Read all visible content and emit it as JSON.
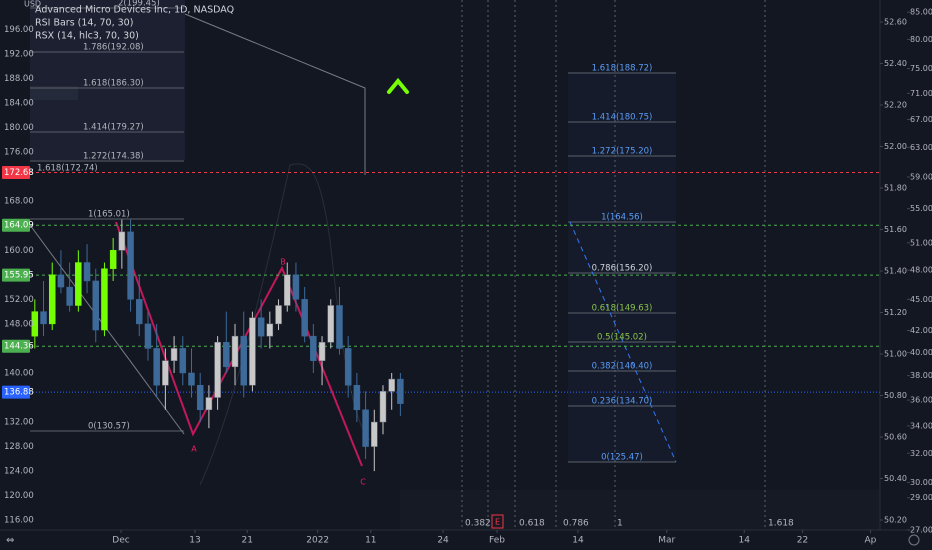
{
  "chart_data": {
    "type": "candlestick",
    "title": "Advanced Micro Devices Inc, 1D, NASDAQ",
    "indicators": [
      "RSI Bars (14, 70, 30)",
      "RSX (14, hlc3, 70, 30)"
    ],
    "currency": "USD",
    "x": [
      0,
      1,
      2,
      3,
      4,
      5,
      6,
      7,
      8,
      9,
      10,
      11,
      12,
      13,
      14,
      15,
      16,
      17,
      18,
      19,
      20,
      21,
      22,
      23,
      24,
      25,
      26,
      27,
      28,
      29,
      30,
      31,
      32,
      33,
      34,
      35,
      36,
      37,
      38,
      39,
      40,
      41,
      42
    ],
    "open": [
      146,
      150,
      148,
      156,
      154,
      151,
      158,
      155,
      147,
      157,
      160,
      163,
      152,
      148,
      144,
      138,
      142,
      144,
      140,
      138,
      134,
      136,
      145,
      141,
      146,
      138,
      149,
      146,
      148,
      151,
      156,
      152,
      146,
      142,
      145,
      151,
      144,
      138,
      134,
      128,
      132,
      137,
      139
    ],
    "high": [
      152,
      155,
      158,
      160,
      158,
      160,
      161,
      157,
      158,
      162,
      165,
      165,
      156,
      150,
      148,
      144,
      146,
      146,
      144,
      140,
      138,
      146,
      150,
      148,
      150,
      150,
      152,
      150,
      152,
      158,
      158,
      154,
      148,
      146,
      152,
      154,
      146,
      140,
      137,
      134,
      138,
      140,
      140
    ],
    "low": [
      144,
      146,
      147,
      153,
      150,
      150,
      153,
      145,
      146,
      155,
      157,
      150,
      146,
      142,
      136,
      134,
      140,
      138,
      136,
      132,
      131,
      134,
      140,
      138,
      136,
      137,
      144,
      144,
      147,
      150,
      150,
      145,
      140,
      138,
      144,
      143,
      136,
      132,
      126,
      124,
      130,
      134,
      133
    ],
    "close": [
      150,
      148,
      156,
      154,
      151,
      158,
      155,
      147,
      157,
      160,
      163,
      152,
      148,
      144,
      138,
      142,
      144,
      140,
      138,
      134,
      136,
      145,
      141,
      146,
      138,
      149,
      146,
      148,
      151,
      156,
      152,
      146,
      142,
      145,
      151,
      144,
      138,
      134,
      128,
      132,
      137,
      139,
      135
    ],
    "colors": [
      "#76ff03",
      "#3d6a99",
      "#76ff03",
      "#3d6a99",
      "#3d6a99",
      "#76ff03",
      "#3d6a99",
      "#3d6a99",
      "#76ff03",
      "#76ff03",
      "#c8c8c8",
      "#3d6a99",
      "#3d6a99",
      "#3d6a99",
      "#3d6a99",
      "#c8c8c8",
      "#c8c8c8",
      "#3d6a99",
      "#3d6a99",
      "#3d6a99",
      "#c8c8c8",
      "#c8c8c8",
      "#3d6a99",
      "#c8c8c8",
      "#3d6a99",
      "#c8c8c8",
      "#3d6a99",
      "#c8c8c8",
      "#c8c8c8",
      "#c8c8c8",
      "#3d6a99",
      "#3d6a99",
      "#3d6a99",
      "#c8c8c8",
      "#c8c8c8",
      "#3d6a99",
      "#3d6a99",
      "#3d6a99",
      "#3d6a99",
      "#c8c8c8",
      "#c8c8c8",
      "#c8c8c8",
      "#3d6a99"
    ],
    "xlim": [
      -4,
      97.1
    ],
    "xticks": [
      {
        "value": 9.9,
        "label": "Dec"
      },
      {
        "value": 18.4,
        "label": "13"
      },
      {
        "value": 24.4,
        "label": "21"
      },
      {
        "value": 32.5,
        "label": "2022"
      },
      {
        "value": 38.6,
        "label": "11"
      },
      {
        "value": 46.9,
        "label": "24"
      },
      {
        "value": 53.1,
        "label": "Feb"
      },
      {
        "value": 62.4,
        "label": "14"
      },
      {
        "value": 72.6,
        "label": "Mar"
      },
      {
        "value": 81.5,
        "label": "14"
      },
      {
        "value": 88.2,
        "label": "22"
      },
      {
        "value": 96.0,
        "label": "Ap"
      }
    ],
    "ylim": [
      114.4,
      200.8
    ],
    "yticks": [
      {
        "value": 116,
        "label": "116.00"
      },
      {
        "value": 120,
        "label": "120.00"
      },
      {
        "value": 124,
        "label": "124.00"
      },
      {
        "value": 128,
        "label": "128.00"
      },
      {
        "value": 132,
        "label": "132.00"
      },
      {
        "value": 140,
        "label": "140.00"
      },
      {
        "value": 148,
        "label": "148.00"
      },
      {
        "value": 152,
        "label": "152.00"
      },
      {
        "value": 160,
        "label": "160.00"
      },
      {
        "value": 168,
        "label": "168.00"
      },
      {
        "value": 176,
        "label": "176.00"
      },
      {
        "value": 180,
        "label": "180.00"
      },
      {
        "value": 184,
        "label": "184.00"
      },
      {
        "value": 188,
        "label": "188.00"
      },
      {
        "value": 192,
        "label": "192.00"
      },
      {
        "value": 196,
        "label": "196.00"
      }
    ],
    "y2lim": [
      50.152,
      52.706
    ],
    "y2ticks": [
      {
        "value": 50.2,
        "label": "50.20"
      },
      {
        "value": 50.4,
        "label": "50.40"
      },
      {
        "value": 50.6,
        "label": "50.60"
      },
      {
        "value": 50.8,
        "label": "50.80"
      },
      {
        "value": 51.0,
        "label": "51.00"
      },
      {
        "value": 51.2,
        "label": "51.20"
      },
      {
        "value": 51.4,
        "label": "51.40"
      },
      {
        "value": 51.6,
        "label": "51.60"
      },
      {
        "value": 51.8,
        "label": "51.80"
      },
      {
        "value": 52.0,
        "label": "52.00"
      },
      {
        "value": 52.2,
        "label": "52.20"
      },
      {
        "value": 52.4,
        "label": "52.40"
      },
      {
        "value": 52.6,
        "label": "52.60"
      }
    ],
    "y3lim": [
      27,
      87.3
    ],
    "y3log": true,
    "y3ticks": [
      {
        "value": 27,
        "label": "27.00"
      },
      {
        "value": 29,
        "label": "29.00"
      },
      {
        "value": 30,
        "label": "30.00"
      },
      {
        "value": 32,
        "label": "32.00"
      },
      {
        "value": 34,
        "label": "34.00"
      },
      {
        "value": 36,
        "label": "36.00"
      },
      {
        "value": 38,
        "label": "38.00"
      },
      {
        "value": 40,
        "label": "40.00"
      },
      {
        "value": 42,
        "label": "42.00"
      },
      {
        "value": 45,
        "label": "45.00"
      },
      {
        "value": 48,
        "label": "48.00"
      },
      {
        "value": 51,
        "label": "51.00"
      },
      {
        "value": 55,
        "label": "55.00"
      },
      {
        "value": 59,
        "label": "59.00"
      },
      {
        "value": 63,
        "label": "63.00"
      },
      {
        "value": 67,
        "label": "67.00"
      },
      {
        "value": 71,
        "label": "71.00"
      },
      {
        "value": 75,
        "label": "75.00"
      },
      {
        "value": 80,
        "label": "80.00"
      },
      {
        "value": 85,
        "label": "85.00"
      }
    ],
    "price_lines": [
      {
        "value": 172.68,
        "color": "#f23645",
        "dash": "3,3"
      },
      {
        "value": 164.09,
        "color": "#4caf50",
        "dash": "3,3"
      },
      {
        "value": 155.95,
        "color": "#4caf50",
        "dash": "3,3"
      },
      {
        "value": 144.36,
        "color": "#4caf50",
        "dash": "3,3"
      },
      {
        "value": 136.88,
        "color": "#2962ff",
        "dash": "1,2"
      }
    ],
    "fib_left": [
      "2(199.45)",
      "1.786(192.08)",
      "1.618(186.30)",
      "1.414(179.27)",
      "1.272(174.38)",
      "1.618(172.74)",
      "1(165.01)",
      "0(130.57)"
    ],
    "fib_right": [
      "1.618(188.72)",
      "1.414(180.75)",
      "1.272(175.20)",
      "1(164.56)",
      "0.786(156.20)",
      "0.618(149.63)",
      "0.5(145.02)",
      "0.382(140.40)",
      "0.236(134.70)",
      "0(125.47)"
    ],
    "fib_bottom": [
      "0.382",
      "0.618",
      "0.786",
      "1",
      "1.618"
    ],
    "event_marker": "E",
    "pattern_points": [
      "A",
      "B",
      "C"
    ]
  }
}
